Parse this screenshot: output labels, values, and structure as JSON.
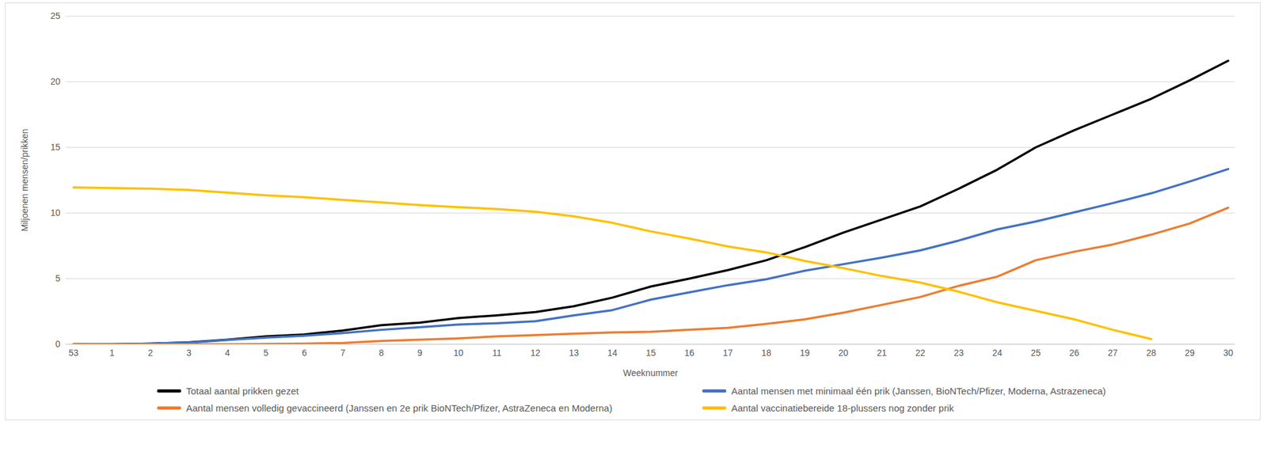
{
  "chart_data": {
    "type": "line",
    "x_label": "Weeknummer",
    "y_label": "Miljoenen mensen/prikken",
    "categories": [
      "53",
      "1",
      "2",
      "3",
      "4",
      "5",
      "6",
      "7",
      "8",
      "9",
      "10",
      "11",
      "12",
      "13",
      "14",
      "15",
      "16",
      "17",
      "18",
      "19",
      "20",
      "21",
      "22",
      "23",
      "24",
      "25",
      "26",
      "27",
      "28",
      "29",
      "30"
    ],
    "series": [
      {
        "name": "Totaal aantal prikken gezet",
        "color": "#000000",
        "values": [
          0,
          0,
          0.05,
          0.15,
          0.35,
          0.6,
          0.75,
          1.05,
          1.45,
          1.65,
          2.0,
          2.2,
          2.45,
          2.9,
          3.55,
          4.4,
          5.0,
          5.65,
          6.4,
          7.4,
          8.5,
          9.5,
          10.5,
          11.85,
          13.3,
          15.0,
          16.3,
          17.5,
          18.7,
          20.1,
          21.6
        ]
      },
      {
        "name": "Aantal mensen met minimaal één prik (Janssen, BioNTech/Pfizer, Moderna, Astrazeneca)",
        "color": "#4472c4",
        "values": [
          0,
          0,
          0.05,
          0.12,
          0.33,
          0.5,
          0.65,
          0.85,
          1.1,
          1.3,
          1.5,
          1.6,
          1.75,
          2.2,
          2.6,
          3.4,
          3.95,
          4.5,
          4.95,
          5.6,
          6.1,
          6.6,
          7.15,
          7.9,
          8.75,
          9.35,
          10.05,
          10.75,
          11.5,
          12.4,
          13.35
        ]
      },
      {
        "name": "Aantal mensen volledig gevaccineerd (Janssen en 2e prik BioNTech/Pfizer, AstraZeneca en Moderna)",
        "color": "#ed7d31",
        "values": [
          0,
          0,
          0,
          0,
          0,
          0.02,
          0.05,
          0.1,
          0.25,
          0.35,
          0.45,
          0.6,
          0.7,
          0.8,
          0.9,
          0.95,
          1.1,
          1.25,
          1.55,
          1.9,
          2.4,
          3.0,
          3.6,
          4.45,
          5.15,
          6.4,
          7.05,
          7.6,
          8.35,
          9.2,
          10.4
        ]
      },
      {
        "name": "Aantal vaccinatiebereide 18-plussers nog zonder prik",
        "color": "#ffc000",
        "values": [
          11.95,
          11.9,
          11.85,
          11.75,
          11.55,
          11.35,
          11.2,
          11.0,
          10.8,
          10.6,
          10.45,
          10.3,
          10.1,
          9.75,
          9.25,
          8.6,
          8.05,
          7.45,
          7.0,
          6.35,
          5.8,
          5.2,
          4.7,
          4.0,
          3.2,
          2.55,
          1.9,
          1.1,
          0.4,
          null,
          null
        ]
      }
    ],
    "ylim": [
      0,
      25
    ],
    "yticks": [
      0,
      5,
      10,
      15,
      20,
      25
    ],
    "grid": true,
    "legend": "bottom"
  }
}
